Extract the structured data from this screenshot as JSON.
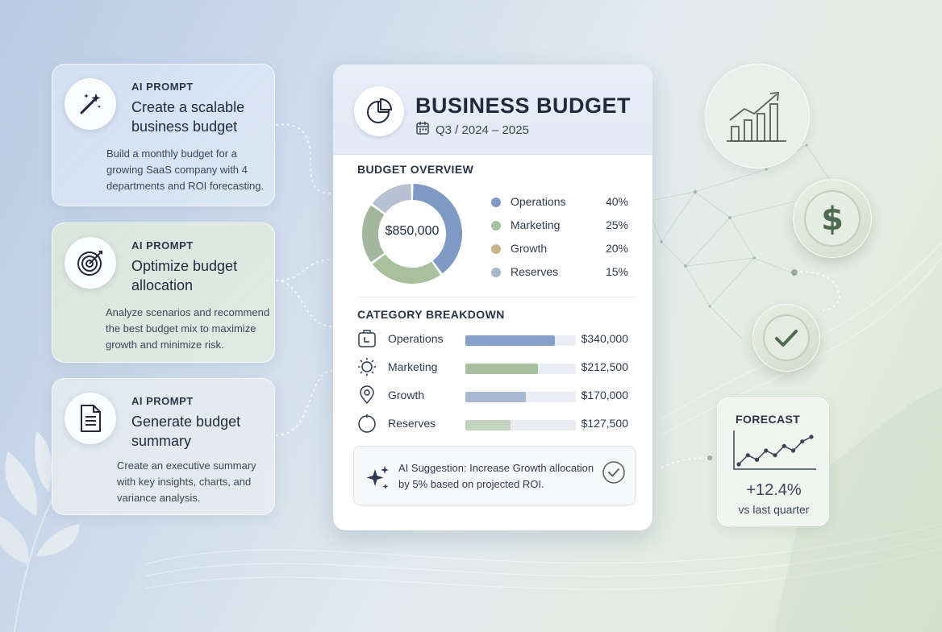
{
  "prompts": [
    {
      "eyebrow": "AI PROMPT",
      "title": "Create a scalable business budget",
      "description": "Build a monthly budget for a growing SaaS company with 4 departments and ROI forecasting.",
      "icon": "magic-wand-icon"
    },
    {
      "eyebrow": "AI PROMPT",
      "title": "Optimize budget allocation",
      "description": "Analyze scenarios and recommend the best budget mix to maximize growth and minimize risk.",
      "icon": "target-icon"
    },
    {
      "eyebrow": "AI PROMPT",
      "title": "Generate budget summary",
      "description": "Create an executive summary with key insights, charts, and variance analysis.",
      "icon": "document-icon"
    }
  ],
  "budget": {
    "title": "BUSINESS BUDGET",
    "period": "Q3 / 2024 – 2025",
    "header_icon": "pie-chart-icon",
    "overview_label": "BUDGET OVERVIEW",
    "total": "$850,000",
    "allocation": [
      {
        "name": "Operations",
        "percent_label": "40%",
        "percent": 40,
        "color": "#7f9ac4"
      },
      {
        "name": "Marketing",
        "percent_label": "25%",
        "percent": 25,
        "color": "#a9c09c"
      },
      {
        "name": "Growth",
        "percent_label": "20%",
        "percent": 20,
        "color": "#a3b79c"
      },
      {
        "name": "Reserves",
        "percent_label": "15%",
        "percent": 15,
        "color": "#b6c2d3"
      }
    ],
    "legend_dot_colors": [
      "#7f9ac4",
      "#a9c09c",
      "#c9b48a",
      "#a9b7c8"
    ],
    "breakdown_label": "CATEGORY BREAKDOWN",
    "breakdown": [
      {
        "name": "Operations",
        "amount": "$340,000",
        "fill_fraction": 0.81,
        "color": "#86a0c8",
        "icon": "briefcase-icon"
      },
      {
        "name": "Marketing",
        "amount": "$212,500",
        "fill_fraction": 0.66,
        "color": "#a7bf9c",
        "icon": "lightbulb-icon"
      },
      {
        "name": "Growth",
        "amount": "$170,000",
        "fill_fraction": 0.55,
        "color": "#a8b7d0",
        "icon": "location-pin-icon"
      },
      {
        "name": "Reserves",
        "amount": "$127,500",
        "fill_fraction": 0.41,
        "color": "#c3d3bf",
        "icon": "circle-icon"
      }
    ],
    "suggestion": {
      "text": "AI Suggestion: Increase Growth allocation by 5% based on projected ROI.",
      "icon": "sparkle-icon",
      "check_icon": "check-circle-icon"
    }
  },
  "side": {
    "growth_icon": "bar-chart-growth-icon",
    "dollar_icon": "dollar-icon",
    "check_icon": "checkmark-icon",
    "forecast": {
      "label": "FORECAST",
      "change": "+12.4%",
      "subtext": "vs last quarter",
      "trend_values": [
        2,
        4,
        3,
        5,
        4,
        6,
        5,
        7,
        8
      ]
    }
  }
}
